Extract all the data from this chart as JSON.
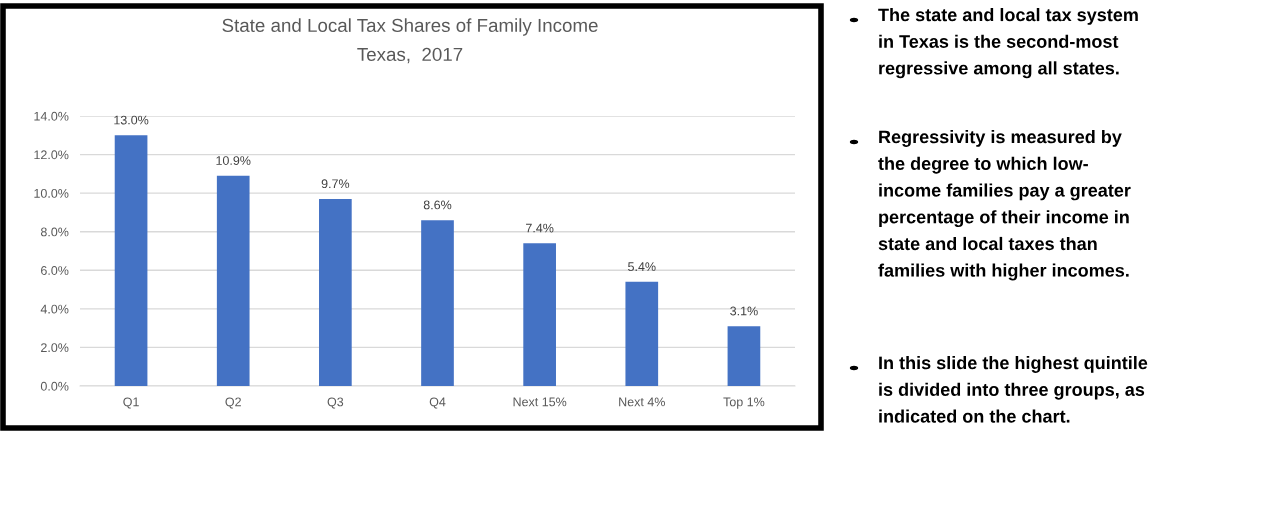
{
  "chart_data": {
    "type": "bar",
    "title": "State and Local Tax Shares of Family Income",
    "subtitle": "Texas,  2017",
    "categories": [
      "Q1",
      "Q2",
      "Q3",
      "Q4",
      "Next 15%",
      "Next 4%",
      "Top 1%"
    ],
    "values": [
      13.0,
      10.9,
      9.7,
      8.6,
      7.4,
      5.4,
      3.1
    ],
    "value_labels": [
      "13.0%",
      "10.9%",
      "9.7%",
      "8.6%",
      "7.4%",
      "5.4%",
      "3.1%"
    ],
    "color": "#4472c4",
    "ylim": [
      0,
      14
    ],
    "yticks": [
      {
        "value": 0,
        "label": "0.0%"
      },
      {
        "value": 2,
        "label": "2.0%"
      },
      {
        "value": 4,
        "label": "4.0%"
      },
      {
        "value": 6,
        "label": "6.0%"
      },
      {
        "value": 8,
        "label": "8.0%"
      },
      {
        "value": 10,
        "label": "10.0%"
      },
      {
        "value": 12,
        "label": "12.0%"
      },
      {
        "value": 14,
        "label": "14.0%"
      }
    ],
    "grid": "y",
    "annotations": [
      "The state and local tax system\nin Texas is the second-most\nregressive among all states.",
      "Regressivity is measured by\nthe degree to which low-\nincome families pay a greater\npercentage of their income in\nstate and local taxes than\nfamilies with higher incomes.",
      "In this slide the highest quintile\nis divided into three groups, as\nindicated on the chart."
    ]
  }
}
